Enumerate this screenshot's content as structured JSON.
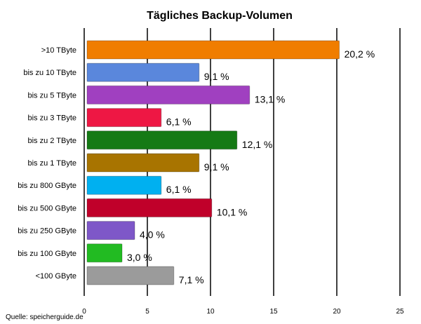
{
  "chart_data": {
    "type": "bar",
    "orientation": "horizontal",
    "title": "Tägliches Backup-Volumen",
    "categories": [
      ">10 TByte",
      "bis zu 10 TByte",
      "bis zu 5 TByte",
      "bis zu 3 TByte",
      "bis zu 2 TByte",
      "bis zu 1 TByte",
      "bis zu 800 GByte",
      "bis zu 500 GByte",
      "bis zu 250 GByte",
      "bis zu 100 GByte",
      "<100 GByte"
    ],
    "values": [
      20.2,
      9.1,
      13.1,
      6.1,
      12.1,
      9.1,
      6.1,
      10.1,
      4.0,
      3.0,
      7.1
    ],
    "value_labels": [
      "20,2 %",
      "9,1 %",
      "13,1 %",
      "6,1 %",
      "12,1 %",
      "9,1 %",
      "6,1 %",
      "10,1 %",
      "4,0 %",
      "3,0 %",
      "7,1 %"
    ],
    "colors": [
      "#f07d00",
      "#5a87dc",
      "#a040c0",
      "#ee1744",
      "#157a15",
      "#a87400",
      "#00b0f0",
      "#c0002a",
      "#7e57c8",
      "#22bb22",
      "#9b9b9b"
    ],
    "xlim": [
      0,
      25
    ],
    "xticks": [
      0,
      5,
      10,
      15,
      20,
      25
    ],
    "xtick_labels": [
      "0",
      "5",
      "10",
      "15",
      "20",
      "25"
    ],
    "xlabel": "",
    "ylabel": "",
    "grid": true,
    "legend": "none"
  },
  "source": "Quelle: speicherguide.de"
}
